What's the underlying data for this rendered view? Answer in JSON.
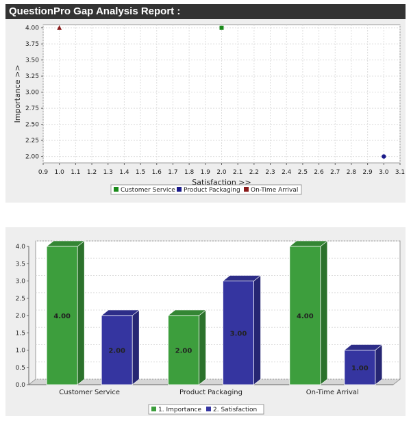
{
  "header": {
    "title": "QuestionPro Gap Analysis Report :"
  },
  "chart_data": [
    {
      "type": "scatter",
      "xlabel": "Satisfaction >>",
      "ylabel": "Importance >>",
      "xlim": [
        0.9,
        3.1
      ],
      "ylim": [
        1.9,
        4.05
      ],
      "xticks": [
        "0.9",
        "1.0",
        "1.1",
        "1.2",
        "1.3",
        "1.4",
        "1.5",
        "1.6",
        "1.7",
        "1.8",
        "1.9",
        "2.0",
        "2.1",
        "2.2",
        "2.3",
        "2.4",
        "2.5",
        "2.6",
        "2.7",
        "2.8",
        "2.9",
        "3.0",
        "3.1"
      ],
      "yticks": [
        "2.00",
        "2.25",
        "2.50",
        "2.75",
        "3.00",
        "3.25",
        "3.50",
        "3.75",
        "4.00"
      ],
      "grid": true,
      "legend_position": "bottom",
      "series": [
        {
          "name": "Customer Service",
          "color": "#1a8a1a",
          "marker": "square",
          "points": [
            [
              2.0,
              4.0
            ]
          ]
        },
        {
          "name": "Product Packaging",
          "color": "#1a1a8a",
          "marker": "circle",
          "points": [
            [
              3.0,
              2.0
            ]
          ]
        },
        {
          "name": "On-Time Arrival",
          "color": "#8a1a1a",
          "marker": "triangle",
          "points": [
            [
              1.0,
              4.0
            ]
          ]
        }
      ]
    },
    {
      "type": "bar",
      "categories": [
        "Customer Service",
        "Product Packaging",
        "On-Time Arrival"
      ],
      "ylim": [
        0,
        4.0
      ],
      "yticks": [
        "0.0",
        "0.5",
        "1.0",
        "1.5",
        "2.0",
        "2.5",
        "3.0",
        "3.5",
        "4.0"
      ],
      "grid": true,
      "legend_position": "bottom",
      "series": [
        {
          "name": "1. Importance",
          "color": "#3d9e3d",
          "values": [
            4.0,
            2.0,
            4.0
          ],
          "labels": [
            "4.00",
            "2.00",
            "4.00"
          ]
        },
        {
          "name": "2. Satisfaction",
          "color": "#3535a0",
          "values": [
            2.0,
            3.0,
            1.0
          ],
          "labels": [
            "2.00",
            "3.00",
            "1.00"
          ]
        }
      ]
    }
  ]
}
